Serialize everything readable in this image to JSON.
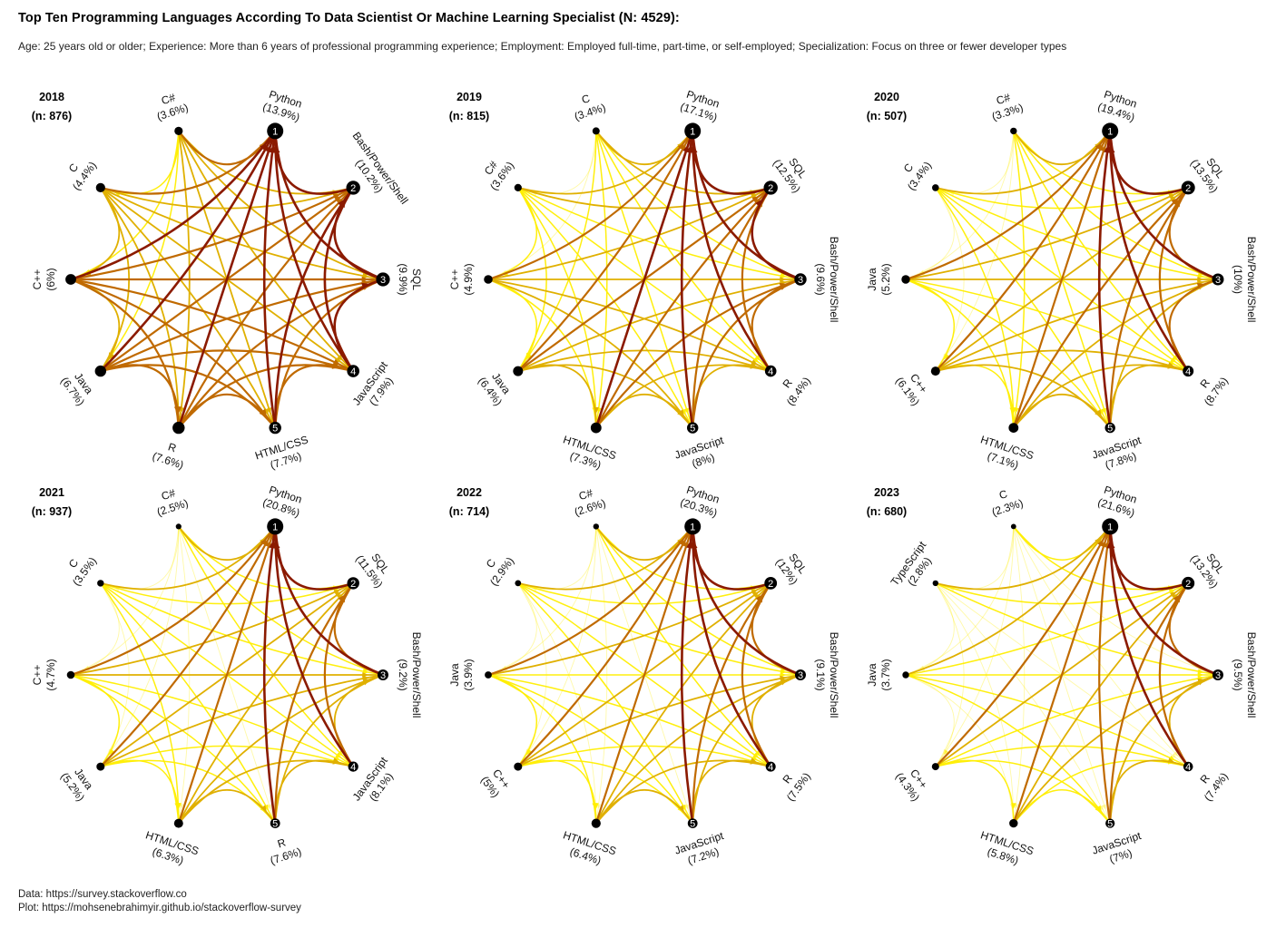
{
  "header": {
    "title": "Top Ten Programming Languages According To  Data Scientist Or Machine Learning Specialist (N: 4529):",
    "subtitle": "Age: 25 years old or older; Experience: More than 6 years of professional programming experience; Employment: Employed full-time, part-time, or self-employed; Specialization: Focus on three or fewer developer types"
  },
  "footer": {
    "data_source": "Data: https://survey.stackoverflow.co",
    "plot_source": "Plot: https://mohsenebrahimyir.github.io/stackoverflow-survey"
  },
  "colors": {
    "strong": "#8b1a00",
    "medium": "#c06a00",
    "light": "#e0b000",
    "faint": "#ffee00",
    "node": "#000000"
  },
  "chart_data": [
    {
      "type": "network",
      "title": "2018",
      "n_label": "(n: 876)",
      "nodes": [
        {
          "name": "Python",
          "pct": "13.9%",
          "rank": "1"
        },
        {
          "name": "Bash/Power/Shell",
          "pct": "10.2%",
          "rank": "2"
        },
        {
          "name": "SQL",
          "pct": "9.9%",
          "rank": "3"
        },
        {
          "name": "JavaScript",
          "pct": "7.9%",
          "rank": "4"
        },
        {
          "name": "HTML/CSS",
          "pct": "7.7%",
          "rank": "5"
        },
        {
          "name": "R",
          "pct": "7.6%",
          "rank": ""
        },
        {
          "name": "Java",
          "pct": "6.7%",
          "rank": ""
        },
        {
          "name": "C++",
          "pct": "6%",
          "rank": ""
        },
        {
          "name": "C",
          "pct": "4.4%",
          "rank": ""
        },
        {
          "name": "C#",
          "pct": "3.6%",
          "rank": ""
        }
      ]
    },
    {
      "type": "network",
      "title": "2019",
      "n_label": "(n: 815)",
      "nodes": [
        {
          "name": "Python",
          "pct": "17.1%",
          "rank": "1"
        },
        {
          "name": "SQL",
          "pct": "12.5%",
          "rank": "2"
        },
        {
          "name": "Bash/Power/Shell",
          "pct": "9.6%",
          "rank": "3"
        },
        {
          "name": "R",
          "pct": "8.4%",
          "rank": "4"
        },
        {
          "name": "JavaScript",
          "pct": "8%",
          "rank": "5"
        },
        {
          "name": "HTML/CSS",
          "pct": "7.3%",
          "rank": ""
        },
        {
          "name": "Java",
          "pct": "6.4%",
          "rank": ""
        },
        {
          "name": "C++",
          "pct": "4.9%",
          "rank": ""
        },
        {
          "name": "C#",
          "pct": "3.6%",
          "rank": ""
        },
        {
          "name": "C",
          "pct": "3.4%",
          "rank": ""
        }
      ]
    },
    {
      "type": "network",
      "title": "2020",
      "n_label": "(n: 507)",
      "nodes": [
        {
          "name": "Python",
          "pct": "19.4%",
          "rank": "1"
        },
        {
          "name": "SQL",
          "pct": "13.5%",
          "rank": "2"
        },
        {
          "name": "Bash/Power/Shell",
          "pct": "10%",
          "rank": "3"
        },
        {
          "name": "R",
          "pct": "8.7%",
          "rank": "4"
        },
        {
          "name": "JavaScript",
          "pct": "7.8%",
          "rank": "5"
        },
        {
          "name": "HTML/CSS",
          "pct": "7.1%",
          "rank": ""
        },
        {
          "name": "C++",
          "pct": "6.1%",
          "rank": ""
        },
        {
          "name": "Java",
          "pct": "5.2%",
          "rank": ""
        },
        {
          "name": "C",
          "pct": "3.4%",
          "rank": ""
        },
        {
          "name": "C#",
          "pct": "3.3%",
          "rank": ""
        }
      ]
    },
    {
      "type": "network",
      "title": "2021",
      "n_label": "(n: 937)",
      "nodes": [
        {
          "name": "Python",
          "pct": "20.8%",
          "rank": "1"
        },
        {
          "name": "SQL",
          "pct": "11.5%",
          "rank": "2"
        },
        {
          "name": "Bash/Power/Shell",
          "pct": "9.2%",
          "rank": "3"
        },
        {
          "name": "JavaScript",
          "pct": "8.1%",
          "rank": "4"
        },
        {
          "name": "R",
          "pct": "7.6%",
          "rank": "5"
        },
        {
          "name": "HTML/CSS",
          "pct": "6.3%",
          "rank": ""
        },
        {
          "name": "Java",
          "pct": "5.2%",
          "rank": ""
        },
        {
          "name": "C++",
          "pct": "4.7%",
          "rank": ""
        },
        {
          "name": "C",
          "pct": "3.5%",
          "rank": ""
        },
        {
          "name": "C#",
          "pct": "2.5%",
          "rank": ""
        }
      ]
    },
    {
      "type": "network",
      "title": "2022",
      "n_label": "(n: 714)",
      "nodes": [
        {
          "name": "Python",
          "pct": "20.3%",
          "rank": "1"
        },
        {
          "name": "SQL",
          "pct": "12%",
          "rank": "2"
        },
        {
          "name": "Bash/Power/Shell",
          "pct": "9.1%",
          "rank": "3"
        },
        {
          "name": "R",
          "pct": "7.5%",
          "rank": "4"
        },
        {
          "name": "JavaScript",
          "pct": "7.2%",
          "rank": "5"
        },
        {
          "name": "HTML/CSS",
          "pct": "6.4%",
          "rank": ""
        },
        {
          "name": "C++",
          "pct": "5%",
          "rank": ""
        },
        {
          "name": "Java",
          "pct": "3.9%",
          "rank": ""
        },
        {
          "name": "C",
          "pct": "2.9%",
          "rank": ""
        },
        {
          "name": "C#",
          "pct": "2.6%",
          "rank": ""
        }
      ]
    },
    {
      "type": "network",
      "title": "2023",
      "n_label": "(n: 680)",
      "nodes": [
        {
          "name": "Python",
          "pct": "21.6%",
          "rank": "1"
        },
        {
          "name": "SQL",
          "pct": "13.2%",
          "rank": "2"
        },
        {
          "name": "Bash/Power/Shell",
          "pct": "9.5%",
          "rank": "3"
        },
        {
          "name": "R",
          "pct": "7.4%",
          "rank": "4"
        },
        {
          "name": "JavaScript",
          "pct": "7%",
          "rank": "5"
        },
        {
          "name": "HTML/CSS",
          "pct": "5.8%",
          "rank": ""
        },
        {
          "name": "C++",
          "pct": "4.3%",
          "rank": ""
        },
        {
          "name": "Java",
          "pct": "3.7%",
          "rank": ""
        },
        {
          "name": "TypeScript",
          "pct": "2.8%",
          "rank": ""
        },
        {
          "name": "C",
          "pct": "2.3%",
          "rank": ""
        }
      ]
    }
  ]
}
